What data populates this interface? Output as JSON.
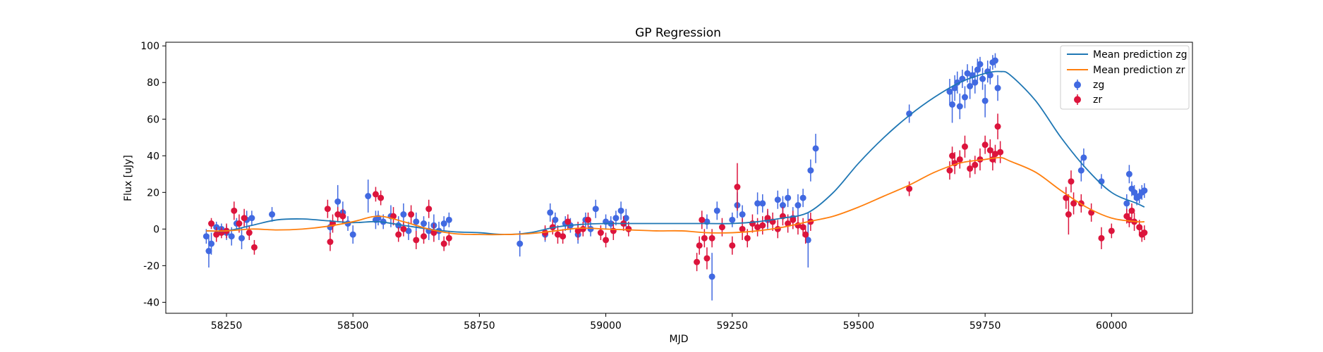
{
  "chart_data": {
    "type": "scatter",
    "title": "GP Regression",
    "xlabel": "MJD",
    "ylabel": "Flux [uJy]",
    "xlim": [
      58130,
      60160
    ],
    "ylim": [
      -46,
      102
    ],
    "xticks": [
      58250,
      58500,
      58750,
      59000,
      59250,
      59500,
      59750,
      60000
    ],
    "yticks": [
      -40,
      -20,
      0,
      20,
      40,
      60,
      80,
      100
    ],
    "grid": false,
    "legend_position": "top-right",
    "legend": [
      "Mean prediction zg",
      "Mean prediction zr",
      "zg",
      "zr"
    ],
    "colors": {
      "mean_zg": "#1f77b4",
      "mean_zr": "#ff7f0e",
      "zg": "#4169e1",
      "zr": "#dc143c"
    },
    "series": [
      {
        "name": "Mean prediction zg",
        "kind": "line",
        "x": [
          58210,
          58250,
          58300,
          58350,
          58400,
          58450,
          58500,
          58550,
          58600,
          58650,
          58700,
          58750,
          58800,
          58850,
          58900,
          58950,
          59000,
          59050,
          59100,
          59150,
          59200,
          59250,
          59300,
          59350,
          59400,
          59450,
          59500,
          59550,
          59600,
          59650,
          59700,
          59750,
          59780,
          59800,
          59850,
          59900,
          59950,
          60000,
          60050,
          60065
        ],
        "y": [
          -1,
          -1,
          2,
          5,
          5.5,
          4.5,
          3.5,
          4,
          2,
          0,
          -1.5,
          -2,
          -3,
          -2,
          1,
          2.5,
          3,
          3,
          3,
          3,
          3,
          3,
          4,
          6,
          9,
          20,
          36,
          50,
          62,
          72,
          80,
          85,
          86,
          84,
          70,
          50,
          33,
          20,
          14,
          12
        ]
      },
      {
        "name": "Mean prediction zr",
        "kind": "line",
        "x": [
          58210,
          58250,
          58300,
          58350,
          58400,
          58450,
          58500,
          58550,
          58600,
          58650,
          58700,
          58750,
          58800,
          58850,
          58900,
          58950,
          59000,
          59050,
          59100,
          59150,
          59200,
          59250,
          59300,
          59350,
          59400,
          59450,
          59500,
          59550,
          59600,
          59650,
          59700,
          59750,
          59780,
          59800,
          59850,
          59900,
          59950,
          60000,
          60050,
          60065
        ],
        "y": [
          -1,
          -1,
          0,
          -0.5,
          0,
          1.5,
          4,
          7,
          4,
          0,
          -2.5,
          -3,
          -3,
          -2.5,
          -1,
          0.5,
          0,
          -0.5,
          -1,
          -1,
          -2,
          -2,
          -1,
          1,
          4,
          7,
          12,
          18,
          24,
          31,
          36,
          38,
          39,
          37,
          31,
          21,
          12,
          6,
          4,
          4
        ]
      },
      {
        "name": "zg",
        "kind": "errorbar",
        "x": [
          58210,
          58215,
          58220,
          58230,
          58240,
          58250,
          58260,
          58270,
          58280,
          58290,
          58300,
          58340,
          58455,
          58470,
          58480,
          58490,
          58500,
          58530,
          58545,
          58550,
          58560,
          58575,
          58590,
          58600,
          58610,
          58625,
          58640,
          58650,
          58660,
          58670,
          58680,
          58690,
          58830,
          58880,
          58890,
          58900,
          58920,
          58930,
          58945,
          58960,
          58970,
          58980,
          59000,
          59010,
          59020,
          59030,
          59040,
          59200,
          59210,
          59220,
          59250,
          59260,
          59270,
          59300,
          59310,
          59320,
          59340,
          59350,
          59360,
          59370,
          59380,
          59390,
          59400,
          59405,
          59415,
          59600,
          59680,
          59685,
          59690,
          59695,
          59700,
          59705,
          59710,
          59715,
          59720,
          59725,
          59730,
          59735,
          59740,
          59745,
          59750,
          59755,
          59760,
          59765,
          59770,
          59775,
          59940,
          59945,
          59980,
          60030,
          60035,
          60040,
          60045,
          60050,
          60055,
          60060,
          60065
        ],
        "y": [
          -4,
          -12,
          -8,
          1,
          0,
          -2,
          -4,
          3,
          -5,
          5,
          6,
          8,
          1,
          15,
          9,
          3,
          -3,
          18,
          5,
          6,
          4,
          7,
          2,
          8,
          -1,
          4,
          3,
          -1,
          2,
          -1,
          3,
          5,
          -8,
          -3,
          9,
          5,
          3,
          2,
          -3,
          5,
          0,
          11,
          4,
          3,
          6,
          10,
          6,
          4,
          -26,
          10,
          5,
          13,
          8,
          14,
          14,
          5,
          16,
          13,
          17,
          6,
          13,
          17,
          -6,
          32,
          44,
          63,
          75,
          68,
          77,
          80,
          67,
          82,
          72,
          85,
          78,
          84,
          80,
          87,
          90,
          82,
          70,
          86,
          84,
          91,
          92,
          77,
          32,
          39,
          26,
          14,
          30,
          22,
          20,
          17,
          18,
          20,
          21
        ],
        "yerr": [
          4,
          9,
          6,
          3,
          3,
          4,
          5,
          3,
          6,
          5,
          4,
          4,
          4,
          9,
          6,
          4,
          5,
          9,
          5,
          4,
          4,
          6,
          5,
          6,
          5,
          5,
          4,
          5,
          6,
          5,
          4,
          4,
          7,
          4,
          5,
          4,
          4,
          4,
          5,
          4,
          4,
          5,
          4,
          4,
          4,
          5,
          5,
          4,
          13,
          5,
          4,
          7,
          5,
          6,
          5,
          5,
          5,
          5,
          5,
          6,
          6,
          5,
          15,
          6,
          8,
          5,
          7,
          10,
          7,
          6,
          7,
          5,
          6,
          5,
          7,
          5,
          6,
          6,
          4,
          6,
          9,
          6,
          5,
          4,
          4,
          7,
          6,
          5,
          4,
          5,
          5,
          4,
          4,
          4,
          4,
          4,
          4
        ]
      },
      {
        "name": "zr",
        "kind": "errorbar",
        "x": [
          58220,
          58230,
          58240,
          58250,
          58265,
          58275,
          58285,
          58295,
          58305,
          58450,
          58455,
          58460,
          58470,
          58480,
          58545,
          58555,
          58580,
          58590,
          58600,
          58615,
          58625,
          58640,
          58650,
          58660,
          58680,
          58690,
          58880,
          58895,
          58905,
          58915,
          58925,
          58945,
          58955,
          58965,
          58990,
          59000,
          59015,
          59035,
          59045,
          59180,
          59185,
          59190,
          59195,
          59200,
          59210,
          59230,
          59250,
          59260,
          59270,
          59280,
          59290,
          59300,
          59310,
          59320,
          59330,
          59340,
          59350,
          59360,
          59370,
          59380,
          59390,
          59395,
          59405,
          59600,
          59680,
          59685,
          59690,
          59700,
          59710,
          59720,
          59730,
          59740,
          59750,
          59760,
          59765,
          59770,
          59775,
          59780,
          59910,
          59915,
          59920,
          59925,
          59940,
          59960,
          59980,
          60000,
          60030,
          60035,
          60040,
          60045,
          60055,
          60060,
          60065
        ],
        "y": [
          3,
          -3,
          -2,
          -1,
          10,
          3,
          6,
          -2,
          -10,
          11,
          -7,
          3,
          8,
          7,
          19,
          17,
          7,
          -3,
          0,
          8,
          -6,
          -4,
          11,
          -2,
          -8,
          -5,
          -2,
          1,
          -3,
          -4,
          4,
          -1,
          0,
          5,
          -2,
          -6,
          -1,
          3,
          0,
          -18,
          -9,
          5,
          -5,
          -16,
          -5,
          1,
          -9,
          23,
          0,
          -5,
          3,
          1,
          2,
          6,
          4,
          0,
          7,
          3,
          5,
          2,
          1,
          -3,
          4,
          22,
          32,
          40,
          36,
          38,
          45,
          33,
          35,
          38,
          46,
          43,
          38,
          41,
          56,
          42,
          17,
          8,
          26,
          14,
          14,
          9,
          -5,
          -1,
          7,
          5,
          10,
          4,
          1,
          -3,
          -2
        ],
        "yerr": [
          3,
          4,
          3,
          4,
          5,
          5,
          5,
          4,
          4,
          5,
          5,
          5,
          4,
          4,
          4,
          4,
          5,
          4,
          4,
          5,
          5,
          4,
          5,
          5,
          4,
          4,
          4,
          4,
          5,
          4,
          4,
          5,
          4,
          4,
          4,
          4,
          5,
          4,
          4,
          5,
          5,
          5,
          5,
          6,
          5,
          5,
          5,
          13,
          6,
          5,
          5,
          5,
          5,
          5,
          5,
          5,
          5,
          5,
          5,
          5,
          5,
          5,
          5,
          4,
          5,
          5,
          6,
          5,
          6,
          5,
          5,
          6,
          5,
          6,
          6,
          5,
          7,
          6,
          6,
          11,
          6,
          6,
          5,
          5,
          6,
          4,
          4,
          4,
          4,
          5,
          4,
          4,
          4
        ]
      }
    ]
  }
}
